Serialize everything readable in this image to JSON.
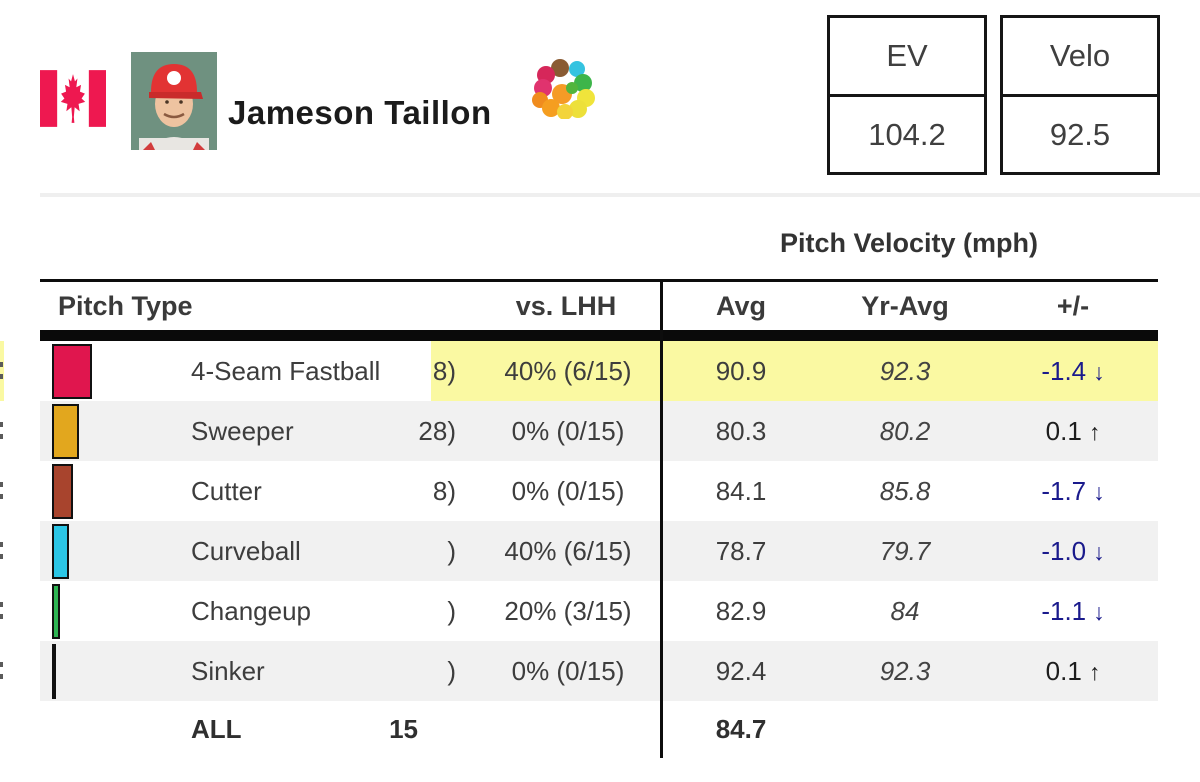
{
  "header": {
    "player_name": "Jameson Taillon",
    "stat_boxes": [
      {
        "label": "EV",
        "value": "104.2"
      },
      {
        "label": "Velo",
        "value": "92.5"
      }
    ]
  },
  "icons": {
    "flag": "canada-flag-icon",
    "player_photo": "player-headshot",
    "pitch_mix": "pitch-mix-flower-icon"
  },
  "table": {
    "group_header": "Pitch Velocity (mph)",
    "headers": {
      "pitch_type": "Pitch Type",
      "vs_lhh": "vs. LHH",
      "avg": "Avg",
      "yr_avg": "Yr-Avg",
      "plus_minus": "+/-"
    },
    "rows": [
      {
        "pitch": "4-Seam Fastball",
        "swatch_color": "#e0164e",
        "swatch_width": 40,
        "clipped_fragment": "8)",
        "vs_lhh": "40% (6/15)",
        "avg": "90.9",
        "yr_avg": "92.3",
        "diff": "-1.4",
        "arrow": "↓",
        "trend": "down",
        "highlighted": true
      },
      {
        "pitch": "Sweeper",
        "swatch_color": "#e2a71e",
        "swatch_width": 27,
        "clipped_fragment": "28)",
        "vs_lhh": "0% (0/15)",
        "avg": "80.3",
        "yr_avg": "80.2",
        "diff": "0.1",
        "arrow": "↑",
        "trend": "up",
        "highlighted": false
      },
      {
        "pitch": "Cutter",
        "swatch_color": "#a8442d",
        "swatch_width": 21,
        "clipped_fragment": "8)",
        "vs_lhh": "0% (0/15)",
        "avg": "84.1",
        "yr_avg": "85.8",
        "diff": "-1.7",
        "arrow": "↓",
        "trend": "down",
        "highlighted": false
      },
      {
        "pitch": "Curveball",
        "swatch_color": "#2bc6e6",
        "swatch_width": 17,
        "clipped_fragment": ")",
        "vs_lhh": "40% (6/15)",
        "avg": "78.7",
        "yr_avg": "79.7",
        "diff": "-1.0",
        "arrow": "↓",
        "trend": "down",
        "highlighted": false
      },
      {
        "pitch": "Changeup",
        "swatch_color": "#2eb553",
        "swatch_width": 8,
        "clipped_fragment": ")",
        "vs_lhh": "20% (3/15)",
        "avg": "82.9",
        "yr_avg": "84",
        "diff": "-1.1",
        "arrow": "↓",
        "trend": "down",
        "highlighted": false
      },
      {
        "pitch": "Sinker",
        "swatch_color": "#121212",
        "swatch_width": 4,
        "clipped_fragment": ")",
        "vs_lhh": "0% (0/15)",
        "avg": "92.4",
        "yr_avg": "92.3",
        "diff": "0.1",
        "arrow": "↑",
        "trend": "up",
        "highlighted": false
      }
    ],
    "totals": {
      "label": "ALL",
      "pitch_count": "15",
      "avg": "84.7"
    }
  },
  "colors": {
    "highlight_yellow": "#faf9a2",
    "row_alt_gray": "#f1f1f1",
    "diff_down_navy": "#1a1a8c",
    "diff_up_black": "#1d1d1d",
    "brand_red": "#ee1850"
  }
}
